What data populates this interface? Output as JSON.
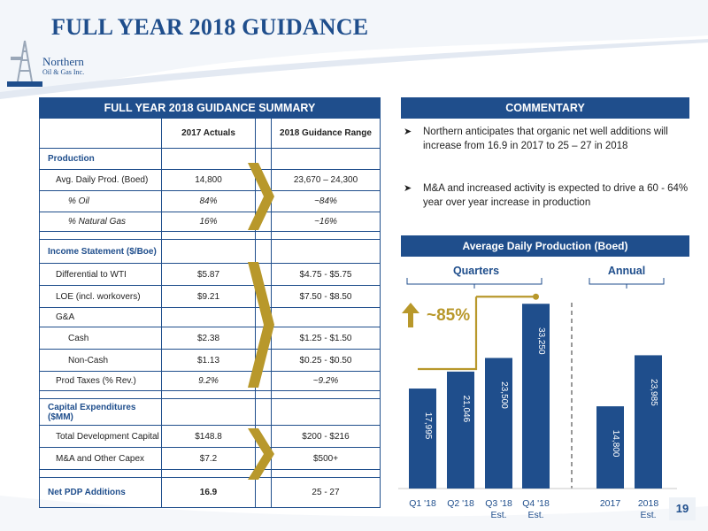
{
  "slide": {
    "title": "FULL YEAR 2018 GUIDANCE",
    "page_number": "19"
  },
  "logo": {
    "name": "Northern",
    "tagline": "Oil & Gas Inc."
  },
  "summary": {
    "header": "FULL YEAR 2018 GUIDANCE SUMMARY",
    "col_actuals": "2017 Actuals",
    "col_guidance": "2018 Guidance Range",
    "rows": [
      {
        "label": "Production",
        "actual": "",
        "guidance": ""
      },
      {
        "label": "Avg. Daily Prod. (Boed)",
        "actual": "14,800",
        "guidance": "23,670 – 24,300"
      },
      {
        "label": "% Oil",
        "actual": "84%",
        "guidance": "~84%"
      },
      {
        "label": "% Natural Gas",
        "actual": "16%",
        "guidance": "~16%"
      },
      {
        "label": "Income Statement ($/Boe)",
        "actual": "",
        "guidance": ""
      },
      {
        "label": "Differential to WTI",
        "actual": "$5.87",
        "guidance": "$4.75 - $5.75"
      },
      {
        "label": "LOE (incl. workovers)",
        "actual": "$9.21",
        "guidance": "$7.50 - $8.50"
      },
      {
        "label": "G&A",
        "actual": "",
        "guidance": ""
      },
      {
        "label": "Cash",
        "actual": "$2.38",
        "guidance": "$1.25 - $1.50"
      },
      {
        "label": "Non-Cash",
        "actual": "$1.13",
        "guidance": "$0.25 - $0.50"
      },
      {
        "label": "Prod Taxes (% Rev.)",
        "actual": "9.2%",
        "guidance": "~9.2%"
      },
      {
        "label": "Capital Expenditures ($MM)",
        "actual": "",
        "guidance": ""
      },
      {
        "label": "Total Development Capital",
        "actual": "$148.8",
        "guidance": "$200 - $216"
      },
      {
        "label": "M&A and Other Capex",
        "actual": "$7.2",
        "guidance": "$500+"
      },
      {
        "label": "Net PDP Additions",
        "actual": "16.9",
        "guidance": "25 - 27"
      }
    ]
  },
  "commentary": {
    "header": "COMMENTARY",
    "bullets": [
      "Northern anticipates that organic net well additions will increase from 16.9 in 2017 to 25 – 27 in 2018",
      "M&A and increased activity is expected to drive a 60 - 64% year over year increase in production"
    ]
  },
  "chart_data": {
    "type": "bar",
    "title": "Average Daily Production (Boed)",
    "group_labels": [
      "Quarters",
      "Annual"
    ],
    "categories": [
      "Q1 '18",
      "Q2 '18",
      "Q3 '18 Est.",
      "Q4 '18 Est.",
      "2017",
      "2018 Est."
    ],
    "values": [
      17995,
      21046,
      23500,
      33250,
      14800,
      23985
    ],
    "value_labels": [
      "17,995",
      "21,046",
      "23,500",
      "33,250",
      "14,800",
      "23,985"
    ],
    "annotation": "~85%",
    "bar_color": "#1f4e8c",
    "accent_color": "#b8982b"
  }
}
